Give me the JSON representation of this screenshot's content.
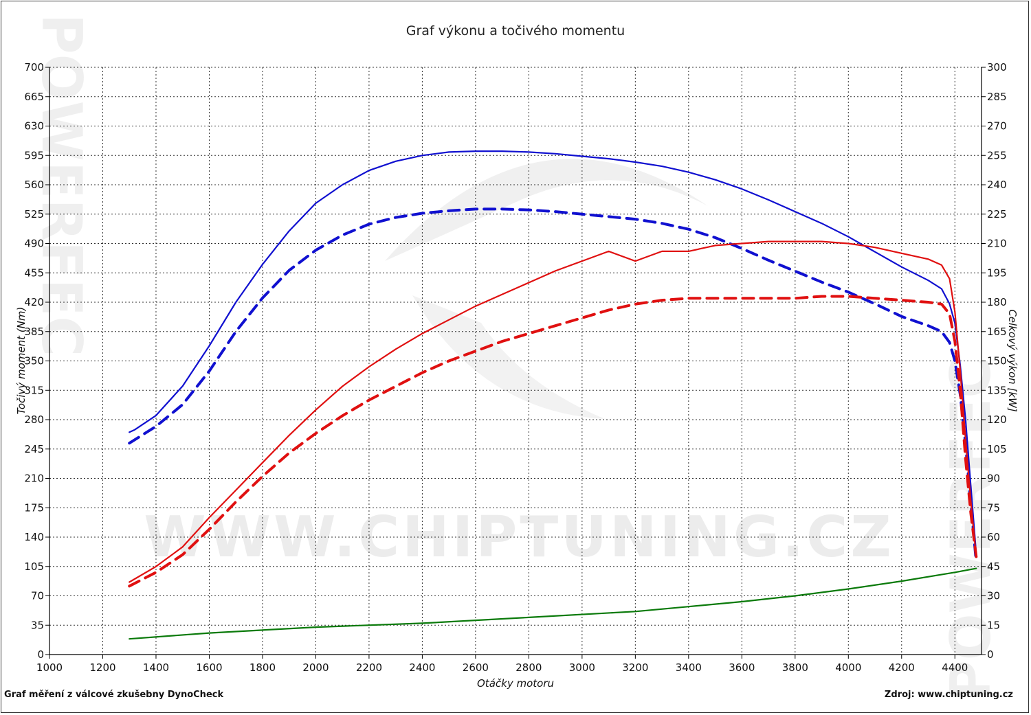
{
  "title": "Graf výkonu a točivého momentu",
  "footer_left": "Graf měření z válcové zkušebny DynoCheck",
  "footer_right": "Zdroj: www.chiptuning.cz",
  "watermark": "WWW.CHIPTUNING.CZ",
  "side_watermark": "POWERFEC",
  "colors": {
    "torque": "#1010d0",
    "power": "#e01010",
    "loss": "#0a7a0a",
    "grid": "#333333"
  },
  "chart_data": {
    "type": "line",
    "title": "Graf výkonu a točivého momentu",
    "xlabel": "Otáčky motoru",
    "ylabel_left": "Točivý moment (Nm)",
    "ylabel_right": "Celkový výkon [kW]",
    "xlim": [
      1000,
      4500
    ],
    "x_ticks": [
      1000,
      1200,
      1400,
      1600,
      1800,
      2000,
      2200,
      2400,
      2600,
      2800,
      3000,
      3200,
      3400,
      3600,
      3800,
      4000,
      4200,
      4400
    ],
    "ylim_left": [
      0,
      700
    ],
    "y_ticks_left": [
      0,
      35,
      70,
      105,
      140,
      175,
      210,
      245,
      280,
      315,
      350,
      385,
      420,
      455,
      490,
      525,
      560,
      595,
      630,
      665,
      700
    ],
    "ylim_right": [
      0,
      300
    ],
    "y_ticks_right": [
      0,
      15,
      30,
      45,
      60,
      75,
      90,
      105,
      120,
      135,
      150,
      165,
      180,
      195,
      210,
      225,
      240,
      255,
      270,
      285,
      300
    ],
    "grid": true,
    "series": [
      {
        "axis": "left",
        "color": "#1010d0",
        "dashed": false,
        "x": [
          1300,
          1320,
          1400,
          1500,
          1600,
          1700,
          1800,
          1900,
          2000,
          2100,
          2200,
          2300,
          2400,
          2500,
          2600,
          2700,
          2800,
          2900,
          3000,
          3100,
          3200,
          3300,
          3400,
          3500,
          3600,
          3700,
          3800,
          3900,
          4000,
          4100,
          4200,
          4300,
          4350,
          4380,
          4400,
          4420,
          4440,
          4460,
          4480
        ],
        "y": [
          265,
          268,
          285,
          320,
          368,
          420,
          465,
          505,
          538,
          560,
          577,
          588,
          595,
          599,
          600,
          600,
          599,
          597,
          594,
          591,
          587,
          582,
          575,
          566,
          555,
          542,
          528,
          514,
          498,
          480,
          462,
          446,
          436,
          418,
          395,
          345,
          280,
          200,
          120
        ]
      },
      {
        "axis": "left",
        "color": "#1010d0",
        "dashed": true,
        "x": [
          1300,
          1400,
          1500,
          1600,
          1700,
          1800,
          1900,
          2000,
          2100,
          2200,
          2300,
          2400,
          2500,
          2600,
          2700,
          2800,
          2900,
          3000,
          3100,
          3200,
          3300,
          3400,
          3500,
          3600,
          3700,
          3800,
          3900,
          4000,
          4100,
          4200,
          4300,
          4350,
          4380,
          4400,
          4420,
          4440,
          4460,
          4480
        ],
        "y": [
          252,
          272,
          298,
          338,
          385,
          425,
          458,
          482,
          500,
          513,
          521,
          526,
          529,
          531,
          531,
          530,
          528,
          525,
          522,
          519,
          514,
          507,
          497,
          484,
          470,
          457,
          444,
          432,
          418,
          403,
          392,
          385,
          372,
          350,
          310,
          250,
          180,
          110
        ]
      },
      {
        "axis": "right",
        "color": "#e01010",
        "dashed": false,
        "x": [
          1300,
          1400,
          1500,
          1600,
          1700,
          1800,
          1900,
          2000,
          2100,
          2200,
          2300,
          2400,
          2500,
          2600,
          2700,
          2800,
          2900,
          3000,
          3100,
          3200,
          3300,
          3400,
          3500,
          3600,
          3700,
          3800,
          3900,
          4000,
          4100,
          4200,
          4300,
          4350,
          4380,
          4400,
          4420,
          4440,
          4460,
          4480
        ],
        "y": [
          37,
          45,
          55,
          70,
          84,
          98,
          112,
          125,
          137,
          147,
          156,
          164,
          171,
          178,
          184,
          190,
          196,
          201,
          206,
          201,
          206,
          206,
          209,
          210,
          211,
          211,
          211,
          210,
          208,
          205,
          202,
          199,
          192,
          175,
          145,
          110,
          78,
          50
        ]
      },
      {
        "axis": "right",
        "color": "#e01010",
        "dashed": true,
        "x": [
          1300,
          1400,
          1500,
          1600,
          1700,
          1800,
          1900,
          2000,
          2100,
          2200,
          2300,
          2400,
          2500,
          2600,
          2700,
          2800,
          2900,
          3000,
          3100,
          3200,
          3300,
          3400,
          3500,
          3600,
          3700,
          3800,
          3900,
          4000,
          4100,
          4200,
          4300,
          4350,
          4380,
          4400,
          4420,
          4440,
          4460,
          4480
        ],
        "y": [
          35,
          42,
          51,
          64,
          78,
          91,
          103,
          113,
          122,
          130,
          137,
          144,
          150,
          155,
          160,
          164,
          168,
          172,
          176,
          179,
          181,
          182,
          182,
          182,
          182,
          182,
          183,
          183,
          182,
          181,
          180,
          179,
          174,
          160,
          135,
          100,
          72,
          50
        ]
      },
      {
        "axis": "right",
        "color": "#0a7a0a",
        "dashed": false,
        "x": [
          1300,
          1600,
          2000,
          2400,
          2800,
          3200,
          3400,
          3600,
          3800,
          4000,
          4200,
          4400,
          4480
        ],
        "y": [
          8,
          11,
          14,
          16,
          19,
          22,
          24.5,
          27,
          30,
          33.5,
          37.5,
          42,
          44
        ]
      }
    ]
  }
}
